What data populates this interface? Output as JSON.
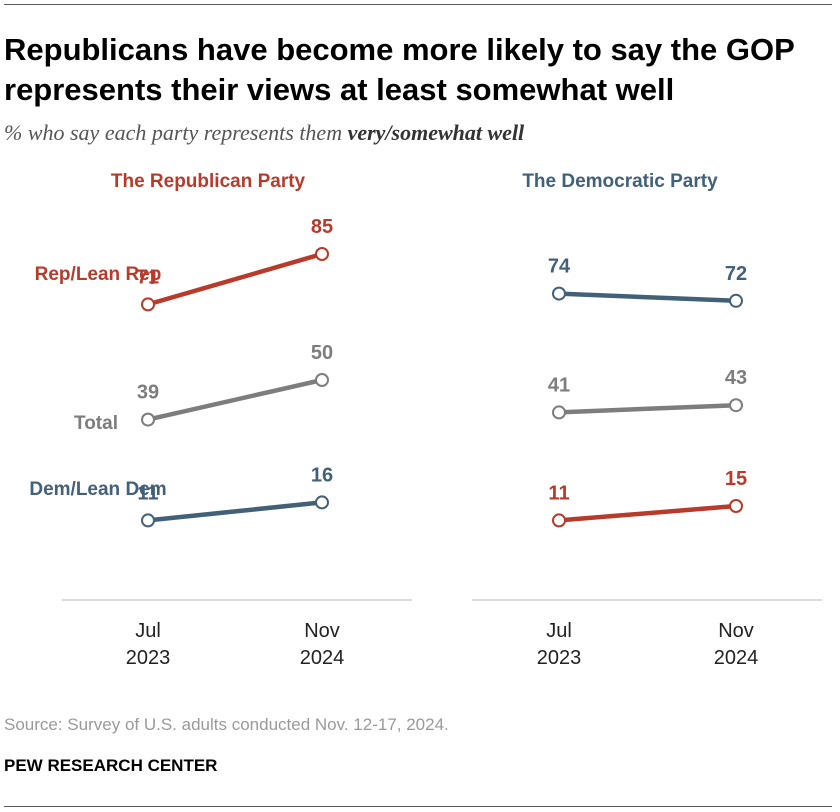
{
  "header": {
    "title": "Republicans have become more likely to say the GOP represents their views at least somewhat well",
    "subtitle_prefix": "% who say each party represents them ",
    "subtitle_emphasis": "very/somewhat well"
  },
  "footer": {
    "source": "Source: Survey of U.S. adults conducted Nov. 12-17, 2024.",
    "org": "PEW RESEARCH CENTER"
  },
  "colors": {
    "rep": "#b83a2b",
    "dem": "#436079",
    "total": "#7d7d7d",
    "axis": "#d0d0d0"
  },
  "chart_data": [
    {
      "type": "line",
      "title": "The Republican Party",
      "title_color": "#b83a2b",
      "categories": [
        [
          "Jul",
          "2023"
        ],
        [
          "Nov",
          "2024"
        ]
      ],
      "series": [
        {
          "name": "Rep/Lean Rep",
          "color": "#b83a2b",
          "values": [
            71,
            85
          ]
        },
        {
          "name": "Total",
          "color": "#7d7d7d",
          "values": [
            39,
            50
          ]
        },
        {
          "name": "Dem/Lean Dem",
          "color": "#436079",
          "values": [
            11,
            16
          ]
        }
      ],
      "grid": false
    },
    {
      "type": "line",
      "title": "The Democratic Party",
      "title_color": "#436079",
      "categories": [
        [
          "Jul",
          "2023"
        ],
        [
          "Nov",
          "2024"
        ]
      ],
      "series": [
        {
          "name": "",
          "color": "#436079",
          "values": [
            74,
            72
          ]
        },
        {
          "name": "",
          "color": "#7d7d7d",
          "values": [
            41,
            43
          ]
        },
        {
          "name": "",
          "color": "#b83a2b",
          "values": [
            11,
            15
          ]
        }
      ],
      "grid": false
    }
  ]
}
